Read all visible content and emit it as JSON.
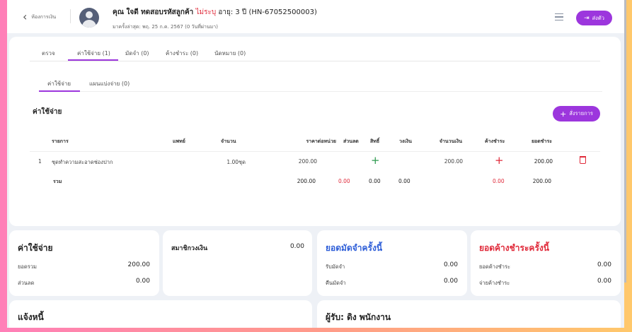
{
  "header": {
    "back_label": "ห้องการเงิน",
    "patient_name": "คุณ ใจดี ทดสอบรหัสลูกค้า",
    "gender": "ไม่ระบุ",
    "age_hn": "อายุ: 3 ปี (HN-67052500003)",
    "last_visit": "มาครั้งล่าสุด: พฤ. 25 ก.ค. 2567 (0 วันที่ผ่านมา)",
    "send_button": "ส่งตัว"
  },
  "tabs": [
    {
      "label": "ตรวจ"
    },
    {
      "label": "ค่าใช้จ่าย (1)",
      "active": true
    },
    {
      "label": "มัดจำ (0)"
    },
    {
      "label": "ค้างชำระ (0)"
    },
    {
      "label": "นัดหมาย (0)"
    }
  ],
  "subtabs": [
    {
      "label": "ค่าใช้จ่าย",
      "active": true
    },
    {
      "label": "แผนแบ่งจ่าย (0)"
    }
  ],
  "section_title": "ค่าใช้จ่าย",
  "add_button": "สั่งรายการ",
  "table": {
    "columns": [
      "รายการ",
      "แพทย์",
      "จำนวน",
      "ราคาต่อหน่วย",
      "ส่วนลด",
      "สิทธิ์",
      "วงเงิน",
      "จำนวนเงิน",
      "ค้างชำระ",
      "ยอดชำระ"
    ],
    "rows": [
      {
        "no": "1",
        "item": "ชุดทำความสะอาดช่องปาก",
        "doctor": "",
        "qty": "1.00ชุด",
        "unit_price": "200.00",
        "amount": "200.00",
        "paid": "200.00"
      }
    ],
    "total": {
      "label": "รวม",
      "unit_price": "200.00",
      "discount": "0.00",
      "privilege": "0.00",
      "credit": "0.00",
      "outstanding": "0.00",
      "paid": "200.00"
    }
  },
  "summary": {
    "expense": {
      "title": "ค่าใช้จ่าย",
      "total_label": "ยอดรวม",
      "total": "200.00",
      "discount_label": "ส่วนลด",
      "discount": "0.00"
    },
    "member": {
      "title": "สมาชิกวงเงิน",
      "value": "0.00"
    },
    "deposit": {
      "title": "ยอดมัดจำครั้งนี้",
      "receive_label": "รับมัดจำ",
      "receive": "0.00",
      "refund_label": "คืนมัดจำ",
      "refund": "0.00"
    },
    "outstanding": {
      "title": "ยอดค้างชำระครั้งนี้",
      "out_label": "ยอดค้างชำระ",
      "out": "0.00",
      "pay_label": "จ่ายค้างชำระ",
      "pay": "0.00"
    },
    "invoice": {
      "title": "แจ้งหนี้"
    },
    "receiver": {
      "title": "ผู้รับ: ดิง พนักงาน"
    }
  },
  "colors": {
    "accent": "#9c36dd",
    "red": "#e02a3a",
    "blue": "#2f5fd8",
    "green": "#2e9a4f"
  }
}
